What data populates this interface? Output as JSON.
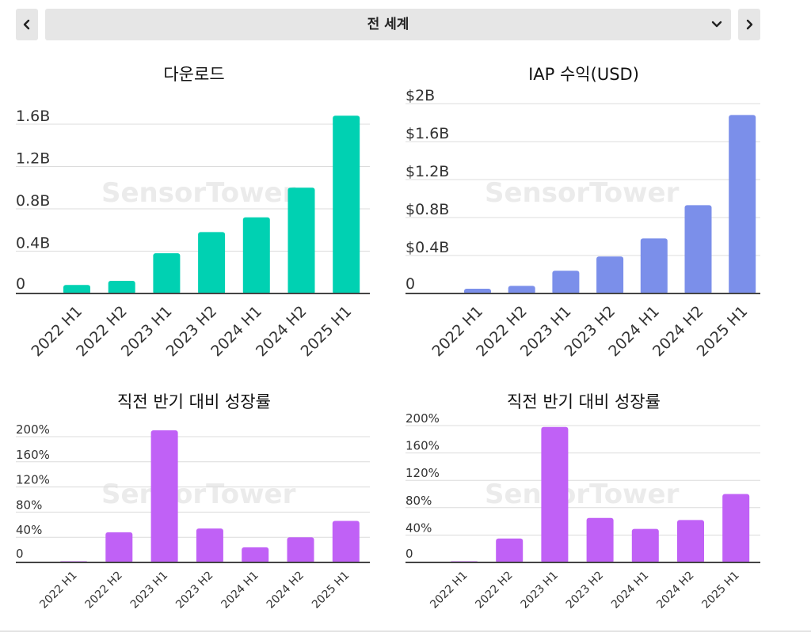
{
  "header": {
    "region": "전 세계",
    "prev_icon": "chevron-left-icon",
    "next_icon": "chevron-right-icon",
    "dropdown_icon": "chevron-down-icon"
  },
  "watermark": "SensorTower",
  "colors": {
    "downloads": "#00d1b2",
    "revenue": "#7b8fea",
    "growth": "#c061f6"
  },
  "chart_data": [
    {
      "type": "bar",
      "title": "다운로드",
      "categories": [
        "2022 H1",
        "2022 H2",
        "2023 H1",
        "2023 H2",
        "2024 H1",
        "2024 H2",
        "2025 H1"
      ],
      "values": [
        0.08,
        0.12,
        0.38,
        0.58,
        0.72,
        1.0,
        1.68
      ],
      "ylim": [
        0,
        1.6
      ],
      "yticks": [
        0,
        0.4,
        0.8,
        1.2,
        1.6
      ],
      "ytick_labels": [
        "0",
        "0.4B",
        "0.8B",
        "1.2B",
        "1.6B"
      ],
      "grid": true
    },
    {
      "type": "bar",
      "title": "IAP 수익(USD)",
      "categories": [
        "2022 H1",
        "2022 H2",
        "2023 H1",
        "2023 H2",
        "2024 H1",
        "2024 H2",
        "2025 H1"
      ],
      "values": [
        0.05,
        0.08,
        0.24,
        0.39,
        0.58,
        0.93,
        1.88
      ],
      "ylim": [
        0,
        2
      ],
      "yticks": [
        0,
        0.4,
        0.8,
        1.2,
        1.6,
        2.0
      ],
      "ytick_labels": [
        "0",
        "$0.4B",
        "$0.8B",
        "$1.2B",
        "$1.6B",
        "$2B"
      ],
      "grid": true
    },
    {
      "type": "bar",
      "title": "직전 반기 대비 성장률",
      "categories": [
        "2022 H1",
        "2022 H2",
        "2023 H1",
        "2023 H2",
        "2024 H1",
        "2024 H2",
        "2025 H1"
      ],
      "values": [
        0,
        48,
        210,
        54,
        24,
        40,
        66
      ],
      "ylim": [
        0,
        200
      ],
      "yticks": [
        0,
        40,
        80,
        120,
        160,
        200
      ],
      "ytick_labels": [
        "0",
        "40%",
        "80%",
        "120%",
        "160%",
        "200%"
      ],
      "grid": true
    },
    {
      "type": "bar",
      "title": "직전 반기 대비 성장률",
      "categories": [
        "2022 H1",
        "2022 H2",
        "2023 H1",
        "2023 H2",
        "2024 H1",
        "2024 H2",
        "2025 H1"
      ],
      "values": [
        0,
        35,
        198,
        65,
        49,
        62,
        100
      ],
      "ylim": [
        0,
        200
      ],
      "yticks": [
        0,
        40,
        80,
        120,
        160,
        200
      ],
      "ytick_labels": [
        "0",
        "40%",
        "80%",
        "120%",
        "160%",
        "200%"
      ],
      "grid": true
    }
  ]
}
